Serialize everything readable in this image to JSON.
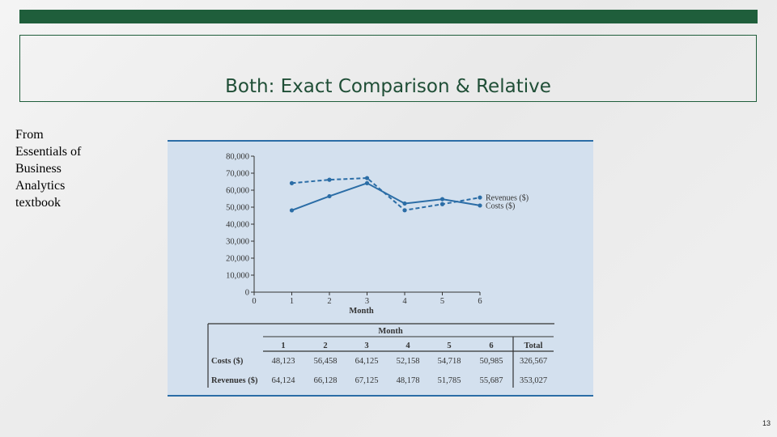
{
  "slide": {
    "title": "Both: Exact Comparison & Relative",
    "note_lines": [
      "From",
      "Essentials of",
      "Business",
      "Analytics",
      "textbook"
    ],
    "page_number": "13"
  },
  "colors": {
    "accent": "#1f5e3b",
    "series": "#2b6da6",
    "figure_bg": "#d3e0ee"
  },
  "chart_data": [
    {
      "type": "line",
      "x": [
        1,
        2,
        3,
        4,
        5,
        6
      ],
      "xlabel": "Month",
      "xticks": [
        "0",
        "1",
        "2",
        "3",
        "4",
        "5",
        "6"
      ],
      "xlim": [
        0,
        6
      ],
      "ylim": [
        0,
        80000
      ],
      "yticks": [
        "0",
        "10,000",
        "20,000",
        "30,000",
        "40,000",
        "50,000",
        "60,000",
        "70,000",
        "80,000"
      ],
      "legend_position": "right",
      "series": [
        {
          "name": "Revenues ($)",
          "style": "dashed",
          "values": [
            64124,
            66128,
            67125,
            48178,
            51785,
            55687
          ]
        },
        {
          "name": "Costs ($)",
          "style": "solid",
          "values": [
            48123,
            56458,
            64125,
            52158,
            54718,
            50985
          ]
        }
      ]
    },
    {
      "type": "table",
      "group_header": "Month",
      "columns": [
        "1",
        "2",
        "3",
        "4",
        "5",
        "6",
        "Total"
      ],
      "rows": [
        {
          "label": "Costs ($)",
          "values": [
            "48,123",
            "56,458",
            "64,125",
            "52,158",
            "54,718",
            "50,985",
            "326,567"
          ]
        },
        {
          "label": "Revenues ($)",
          "values": [
            "64,124",
            "66,128",
            "67,125",
            "48,178",
            "51,785",
            "55,687",
            "353,027"
          ]
        }
      ]
    }
  ]
}
